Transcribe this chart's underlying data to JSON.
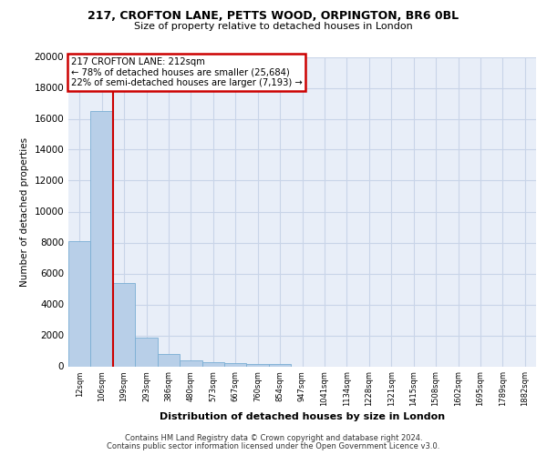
{
  "title1": "217, CROFTON LANE, PETTS WOOD, ORPINGTON, BR6 0BL",
  "title2": "Size of property relative to detached houses in London",
  "xlabel": "Distribution of detached houses by size in London",
  "ylabel": "Number of detached properties",
  "categories": [
    "12sqm",
    "106sqm",
    "199sqm",
    "293sqm",
    "386sqm",
    "480sqm",
    "573sqm",
    "667sqm",
    "760sqm",
    "854sqm",
    "947sqm",
    "1041sqm",
    "1134sqm",
    "1228sqm",
    "1321sqm",
    "1415sqm",
    "1508sqm",
    "1602sqm",
    "1695sqm",
    "1789sqm",
    "1882sqm"
  ],
  "values": [
    8100,
    16500,
    5400,
    1850,
    800,
    380,
    250,
    200,
    150,
    150,
    0,
    0,
    0,
    0,
    0,
    0,
    0,
    0,
    0,
    0,
    0
  ],
  "bar_color": "#b8cfe8",
  "bar_edge_color": "#7aaed4",
  "vline_color": "#cc0000",
  "vline_x": 1.5,
  "annotation_line1": "217 CROFTON LANE: 212sqm",
  "annotation_line2": "← 78% of detached houses are smaller (25,684)",
  "annotation_line3": "22% of semi-detached houses are larger (7,193) →",
  "annotation_box_color": "#cc0000",
  "background_color": "#e8eef8",
  "grid_color": "#d0d8e8",
  "ylim_max": 20000,
  "yticks": [
    0,
    2000,
    4000,
    6000,
    8000,
    10000,
    12000,
    14000,
    16000,
    18000,
    20000
  ],
  "footer1": "Contains HM Land Registry data © Crown copyright and database right 2024.",
  "footer2": "Contains public sector information licensed under the Open Government Licence v3.0."
}
